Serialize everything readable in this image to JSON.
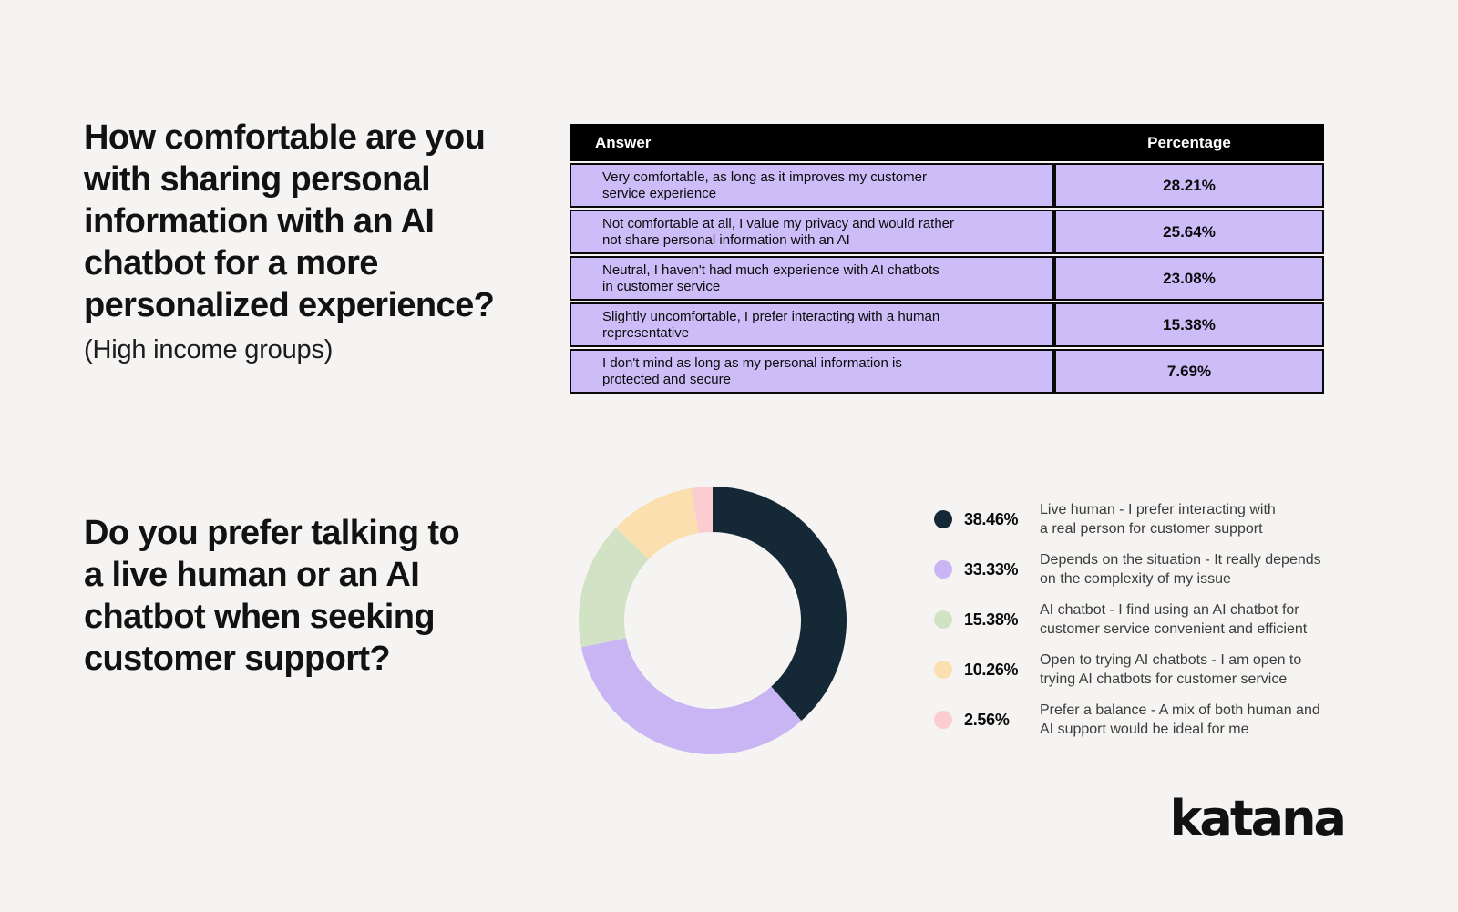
{
  "page": {
    "background_color": "#f5f4f2",
    "accent_purple": "#ccbdf8",
    "accent_navy": "#152836"
  },
  "section1": {
    "title": "How comfortable are you\nwith sharing personal\ninformation with an AI\nchatbot for a more\npersonalized experience?",
    "subtitle": "(High income groups)",
    "table": {
      "header": {
        "answer": "Answer",
        "percentage": "Percentage"
      },
      "rows": [
        {
          "answer": "Very comfortable, as long as it improves my customer\nservice experience",
          "percentage": "28.21%"
        },
        {
          "answer": "Not comfortable at all, I value my privacy and would rather\nnot share personal information with an AI",
          "percentage": "25.64%"
        },
        {
          "answer": "Neutral, I haven't had much experience with AI chatbots\nin customer service",
          "percentage": "23.08%"
        },
        {
          "answer": "Slightly uncomfortable, I prefer interacting with a human\nrepresentative",
          "percentage": "15.38%"
        },
        {
          "answer": "I don't mind as long as my personal information is\nprotected and secure",
          "percentage": "7.69%"
        }
      ],
      "colors": {
        "header_bg": "#000000",
        "header_text": "#ffffff",
        "row_bg": "#ccbdf8",
        "row_border": "#0a0a0a"
      }
    }
  },
  "section2": {
    "title": "Do you prefer talking to\na live human or an AI\nchatbot when seeking\ncustomer support?",
    "legend": [
      {
        "percent": "38.46%",
        "label": "Live human - I prefer interacting with\na real person for customer support"
      },
      {
        "percent": "33.33%",
        "label": "Depends on the situation - It really depends\non the complexity of my issue"
      },
      {
        "percent": "15.38%",
        "label": "AI chatbot - I find using an AI chatbot for\ncustomer service convenient and efficient"
      },
      {
        "percent": "10.26%",
        "label": "Open to trying AI chatbots - I am open to\ntrying AI chatbots for customer service"
      },
      {
        "percent": "2.56%",
        "label": "Prefer a balance - A mix of both human and\nAI support would be ideal for me"
      }
    ]
  },
  "chart_data": [
    {
      "type": "table",
      "title": "How comfortable are you with sharing personal information with an AI chatbot for a more personalized experience? (High income groups)",
      "columns": [
        "Answer",
        "Percentage"
      ],
      "rows": [
        [
          "Very comfortable, as long as it improves my customer service experience",
          28.21
        ],
        [
          "Not comfortable at all, I value my privacy and would rather not share personal information with an AI",
          25.64
        ],
        [
          "Neutral, I haven't had much experience with AI chatbots in customer service",
          23.08
        ],
        [
          "Slightly uncomfortable, I prefer interacting with a human representative",
          15.38
        ],
        [
          "I don't mind as long as my personal information is protected and secure",
          7.69
        ]
      ]
    },
    {
      "type": "pie",
      "donut": true,
      "title": "Do you prefer talking to a live human or an AI chatbot when seeking customer support?",
      "labels": [
        "Live human - I prefer interacting with a real person for customer support",
        "Depends on the situation - It really depends on the complexity of my issue",
        "AI chatbot - I find using an AI chatbot for customer service convenient and efficient",
        "Open to trying AI chatbots - I am open to trying AI chatbots for customer service",
        "Prefer a balance - A mix of both human and AI support would be ideal for me"
      ],
      "values": [
        38.46,
        33.33,
        15.38,
        10.26,
        2.56
      ],
      "colors": [
        "#152836",
        "#c9b5f4",
        "#d2e3c5",
        "#fcdfae",
        "#fccdd0"
      ],
      "start_angle_deg": 0,
      "clockwise": true,
      "inner_radius_ratio": 0.66,
      "legend_position": "right"
    }
  ],
  "footer": {
    "logo_text": "katana"
  }
}
